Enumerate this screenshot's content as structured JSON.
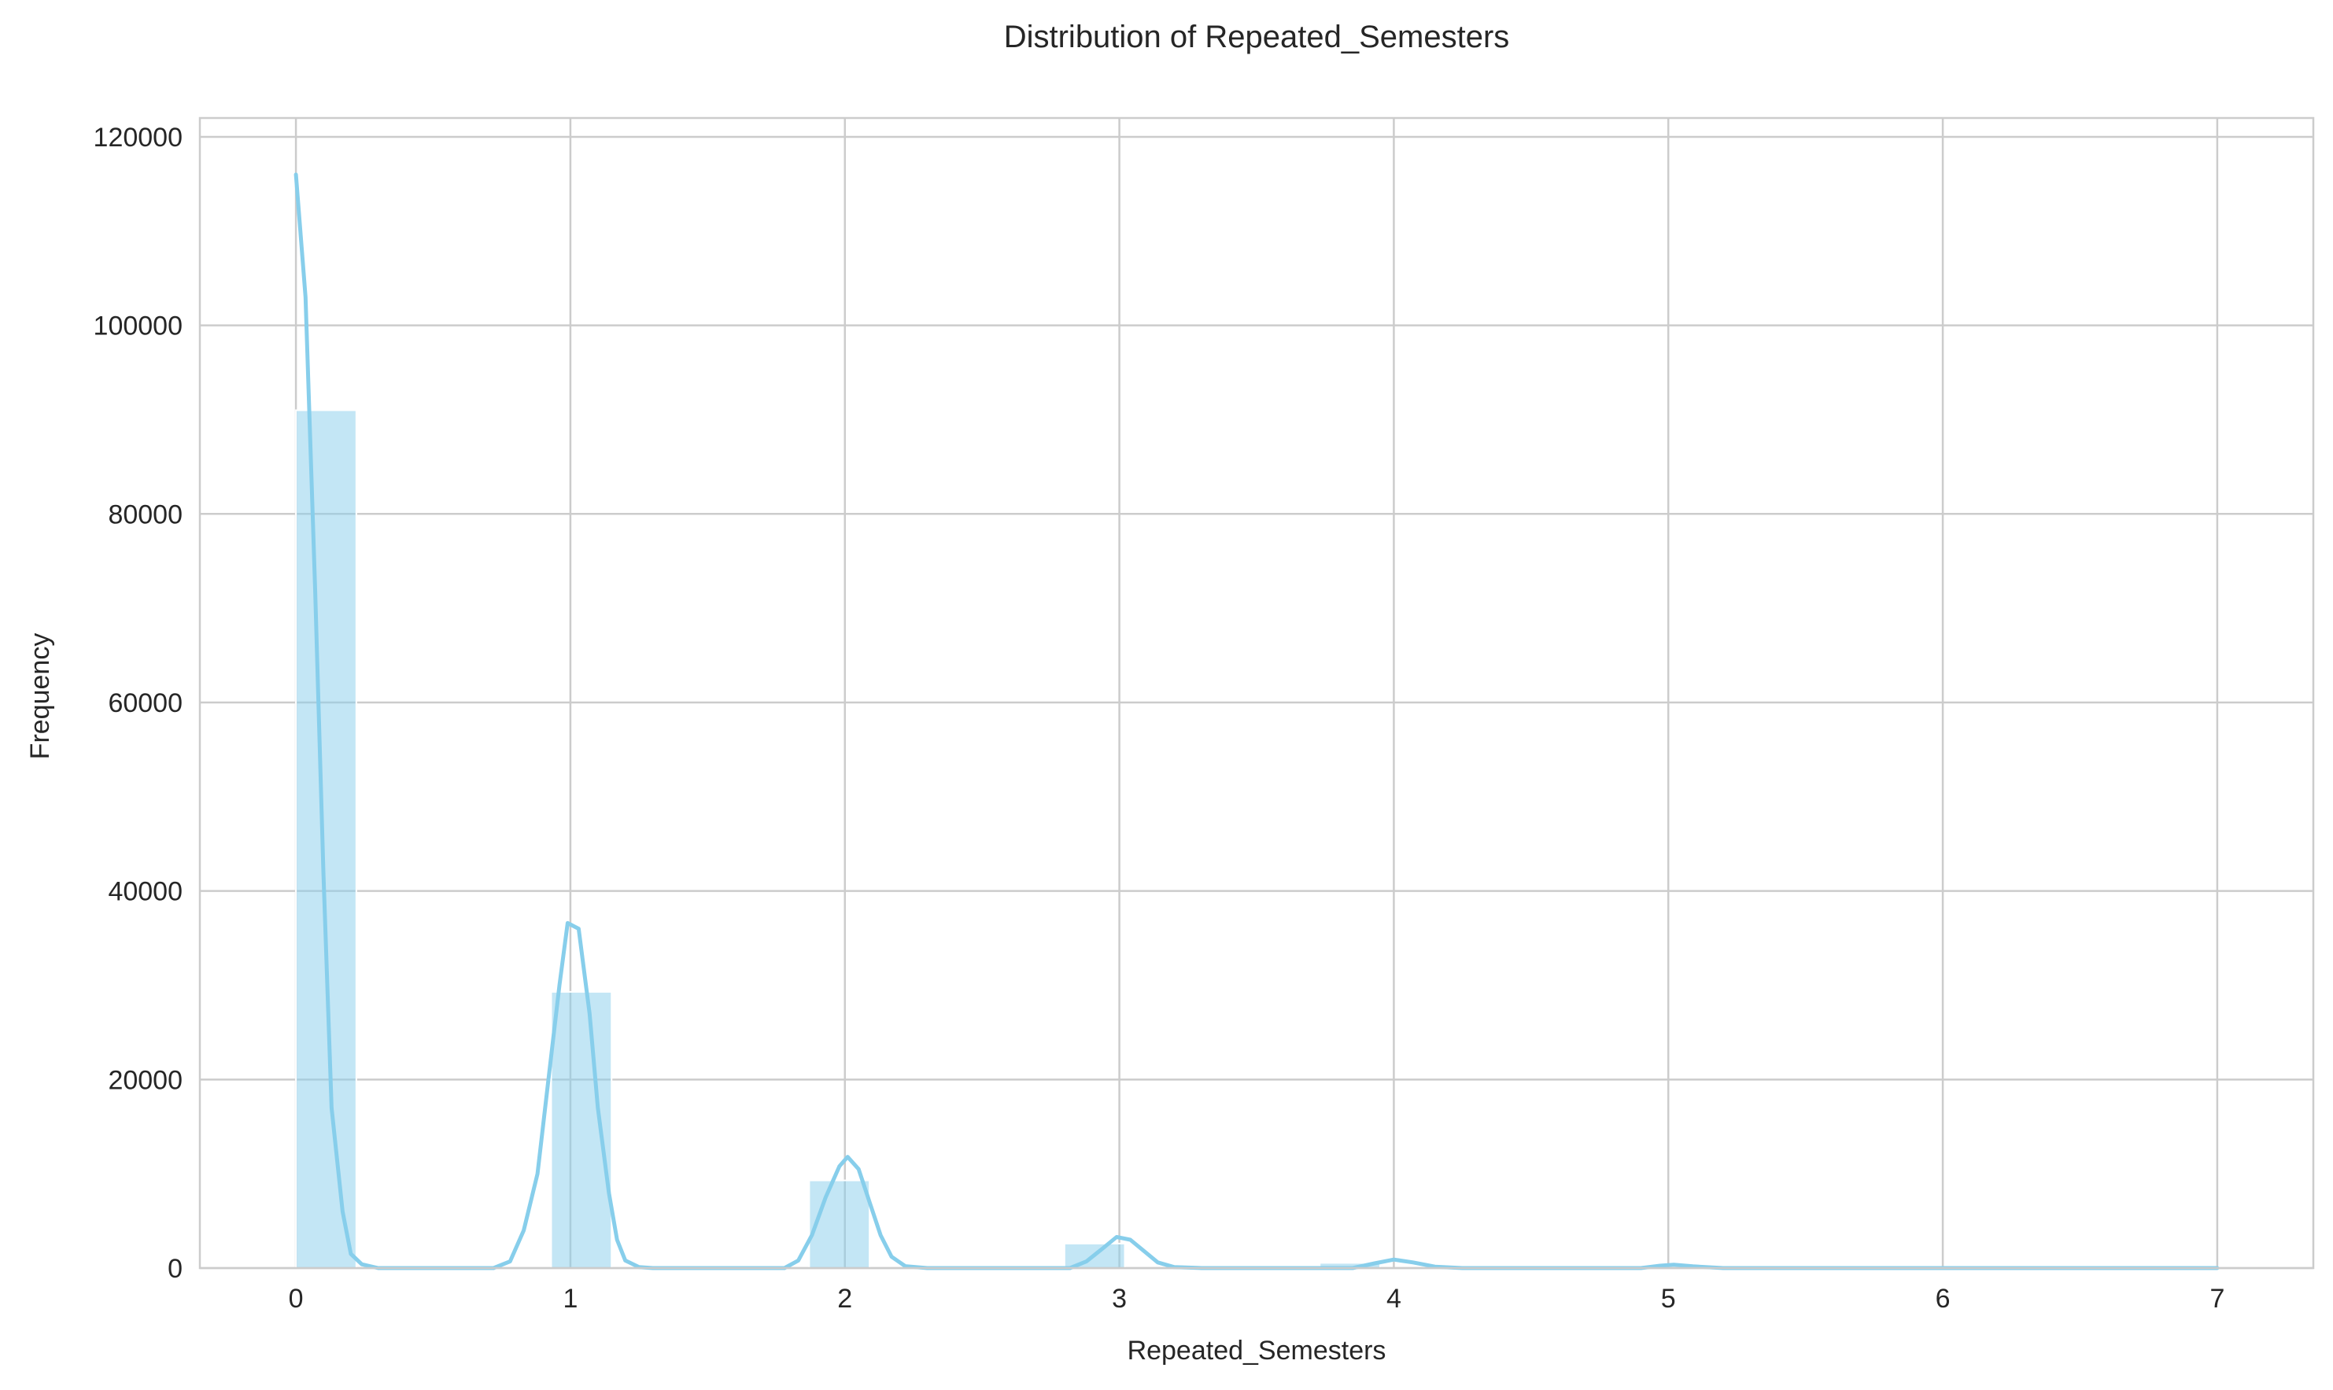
{
  "chart_data": {
    "type": "bar",
    "title": "Distribution of Repeated_Semesters",
    "xlabel": "Repeated_Semesters",
    "ylabel": "Frequency",
    "xlim": [
      -0.35,
      7.35
    ],
    "ylim": [
      0,
      122000
    ],
    "x_ticks": [
      0,
      1,
      2,
      3,
      4,
      5,
      6,
      7
    ],
    "y_ticks": [
      0,
      20000,
      40000,
      60000,
      80000,
      100000,
      120000
    ],
    "grid": true,
    "legend": "none",
    "colors": {
      "bar": "#87ceeb",
      "kde": "#87ceeb",
      "grid": "#cccccc",
      "frame": "#cccccc"
    },
    "bars": [
      {
        "x0": 0.0,
        "x1": 0.22,
        "value": 91000
      },
      {
        "x0": 0.93,
        "x1": 1.15,
        "value": 29300
      },
      {
        "x0": 1.87,
        "x1": 2.09,
        "value": 9300
      },
      {
        "x0": 2.8,
        "x1": 3.02,
        "value": 2600
      },
      {
        "x0": 3.73,
        "x1": 3.95,
        "value": 550
      },
      {
        "x0": 4.67,
        "x1": 4.89,
        "value": 150
      },
      {
        "x0": 5.6,
        "x1": 5.82,
        "value": 30
      },
      {
        "x0": 6.53,
        "x1": 6.75,
        "value": 10
      },
      {
        "x0": 6.78,
        "x1": 7.0,
        "value": 10
      }
    ],
    "kde": [
      [
        0.0,
        116000
      ],
      [
        0.035,
        103000
      ],
      [
        0.07,
        72000
      ],
      [
        0.1,
        42000
      ],
      [
        0.13,
        17000
      ],
      [
        0.17,
        6000
      ],
      [
        0.2,
        1500
      ],
      [
        0.24,
        400
      ],
      [
        0.3,
        0
      ],
      [
        0.72,
        0
      ],
      [
        0.78,
        700
      ],
      [
        0.83,
        4000
      ],
      [
        0.88,
        10000
      ],
      [
        0.92,
        20000
      ],
      [
        0.96,
        30000
      ],
      [
        0.99,
        36600
      ],
      [
        1.03,
        36000
      ],
      [
        1.07,
        27000
      ],
      [
        1.1,
        17000
      ],
      [
        1.14,
        8000
      ],
      [
        1.17,
        3000
      ],
      [
        1.2,
        800
      ],
      [
        1.25,
        100
      ],
      [
        1.3,
        0
      ],
      [
        1.78,
        0
      ],
      [
        1.83,
        800
      ],
      [
        1.88,
        3500
      ],
      [
        1.93,
        7500
      ],
      [
        1.98,
        10800
      ],
      [
        2.01,
        11800
      ],
      [
        2.05,
        10500
      ],
      [
        2.09,
        7000
      ],
      [
        2.13,
        3500
      ],
      [
        2.17,
        1200
      ],
      [
        2.22,
        200
      ],
      [
        2.3,
        0
      ],
      [
        2.82,
        0
      ],
      [
        2.88,
        700
      ],
      [
        2.94,
        2100
      ],
      [
        2.99,
        3300
      ],
      [
        3.04,
        3000
      ],
      [
        3.09,
        1800
      ],
      [
        3.14,
        600
      ],
      [
        3.2,
        100
      ],
      [
        3.3,
        0
      ],
      [
        3.85,
        0
      ],
      [
        3.93,
        500
      ],
      [
        4.0,
        900
      ],
      [
        4.07,
        600
      ],
      [
        4.15,
        150
      ],
      [
        4.25,
        0
      ],
      [
        4.9,
        0
      ],
      [
        4.97,
        250
      ],
      [
        5.02,
        350
      ],
      [
        5.09,
        180
      ],
      [
        5.2,
        0
      ],
      [
        7.0,
        0
      ]
    ]
  }
}
